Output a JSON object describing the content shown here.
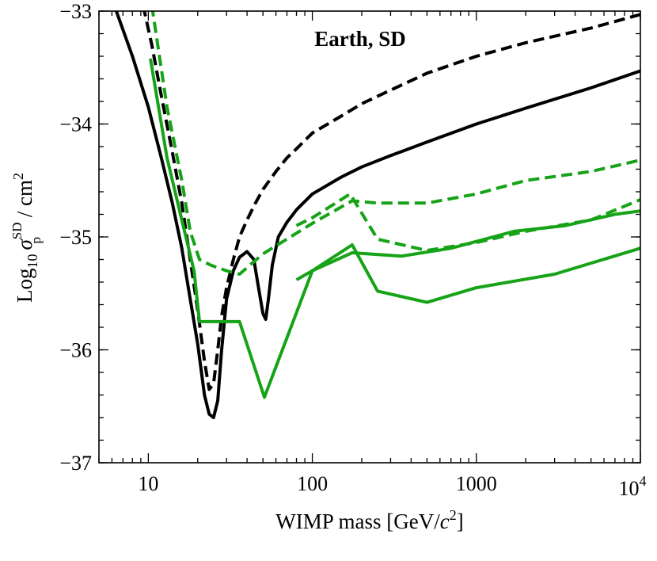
{
  "chart_data": {
    "type": "line",
    "title": "",
    "annotation": "Earth, SD",
    "xlabel": "WIMP mass [GeV/c²]",
    "xlabel_parts": {
      "prefix": "WIMP mass [GeV/",
      "c": "c",
      "exp": "2",
      "suffix": "]"
    },
    "ylabel_parts": {
      "log": "Log",
      "sub10": "10",
      "sigma": "σ",
      "sup": "SD",
      "subp": "p",
      "unit": " / cm",
      "unitexp": "2"
    },
    "xscale": "log",
    "xlim": [
      5,
      10000
    ],
    "ylim": [
      -37,
      -33
    ],
    "x_ticks": [
      {
        "value": 10,
        "label": "10"
      },
      {
        "value": 100,
        "label": "100"
      },
      {
        "value": 1000,
        "label": "1000"
      },
      {
        "value": 10000,
        "label": "10",
        "exp": "4"
      }
    ],
    "y_ticks": [
      {
        "value": -33,
        "label": "−33"
      },
      {
        "value": -34,
        "label": "−34"
      },
      {
        "value": -35,
        "label": "−35"
      },
      {
        "value": -36,
        "label": "−36"
      },
      {
        "value": -37,
        "label": "−37"
      }
    ],
    "colors": {
      "black": "#000000",
      "green": "#17a317"
    },
    "series": [
      {
        "name": "black-solid",
        "color": "#000000",
        "dash": "solid",
        "x": [
          6.2,
          8,
          10,
          12,
          14,
          16,
          18,
          20,
          22,
          23.5,
          25,
          26.5,
          28,
          30,
          33,
          36,
          40,
          44,
          47,
          50,
          52,
          54,
          57,
          62,
          70,
          80,
          100,
          150,
          200,
          300,
          500,
          1000,
          2000,
          5000,
          10000
        ],
        "y": [
          -32.95,
          -33.4,
          -33.85,
          -34.3,
          -34.7,
          -35.1,
          -35.55,
          -35.95,
          -36.4,
          -36.57,
          -36.6,
          -36.45,
          -36.0,
          -35.55,
          -35.3,
          -35.18,
          -35.13,
          -35.2,
          -35.45,
          -35.68,
          -35.73,
          -35.55,
          -35.25,
          -35.0,
          -34.87,
          -34.76,
          -34.62,
          -34.47,
          -34.38,
          -34.28,
          -34.16,
          -34.0,
          -33.86,
          -33.68,
          -33.53
        ]
      },
      {
        "name": "black-dashed",
        "color": "#000000",
        "dash": "dashed",
        "x": [
          9.3,
          10.5,
          12,
          14,
          16,
          18,
          20,
          22,
          23.5,
          25,
          26.5,
          28,
          30,
          33,
          36,
          40,
          45,
          50,
          60,
          70,
          80,
          100,
          150,
          200,
          300,
          500,
          1000,
          2000,
          5000,
          10000
        ],
        "y": [
          -32.95,
          -33.3,
          -33.75,
          -34.25,
          -34.7,
          -35.2,
          -35.65,
          -36.1,
          -36.35,
          -36.3,
          -36.0,
          -35.7,
          -35.45,
          -35.2,
          -35.0,
          -34.85,
          -34.7,
          -34.58,
          -34.42,
          -34.3,
          -34.22,
          -34.08,
          -33.93,
          -33.82,
          -33.7,
          -33.55,
          -33.4,
          -33.28,
          -33.15,
          -33.03
        ]
      },
      {
        "name": "green-solid-1",
        "color": "#17a317",
        "dash": "solid",
        "x": [
          10.3,
          13,
          16,
          19,
          20.5,
          28,
          36,
          51,
          100,
          175,
          250,
          500,
          1000,
          3000,
          10000
        ],
        "y": [
          -33.42,
          -34.3,
          -34.85,
          -35.3,
          -35.75,
          -35.75,
          -35.75,
          -36.42,
          -35.3,
          -35.07,
          -35.48,
          -35.58,
          -35.45,
          -35.33,
          -35.1
        ]
      },
      {
        "name": "green-solid-2",
        "color": "#17a317",
        "dash": "solid",
        "x": [
          80,
          100,
          175,
          350,
          700,
          1700,
          3500,
          7000,
          10000
        ],
        "y": [
          -35.38,
          -35.3,
          -35.14,
          -35.17,
          -35.1,
          -34.95,
          -34.9,
          -34.8,
          -34.77
        ]
      },
      {
        "name": "green-dashed-1",
        "color": "#17a317",
        "dash": "dashed",
        "x": [
          10.5,
          13,
          16,
          18,
          20.5,
          24,
          30,
          36,
          50,
          100,
          175,
          250,
          500,
          1000,
          2000,
          5000,
          10000
        ],
        "y": [
          -32.95,
          -33.85,
          -34.5,
          -34.95,
          -35.2,
          -35.25,
          -35.3,
          -35.33,
          -35.15,
          -34.88,
          -34.68,
          -34.7,
          -34.7,
          -34.62,
          -34.5,
          -34.42,
          -34.32
        ]
      },
      {
        "name": "green-dashed-2",
        "color": "#17a317",
        "dash": "dashed",
        "x": [
          80,
          100,
          170,
          250,
          500,
          1000,
          2000,
          5000,
          10000
        ],
        "y": [
          -34.9,
          -34.83,
          -34.62,
          -35.02,
          -35.12,
          -35.05,
          -34.95,
          -34.85,
          -34.67
        ]
      }
    ]
  }
}
